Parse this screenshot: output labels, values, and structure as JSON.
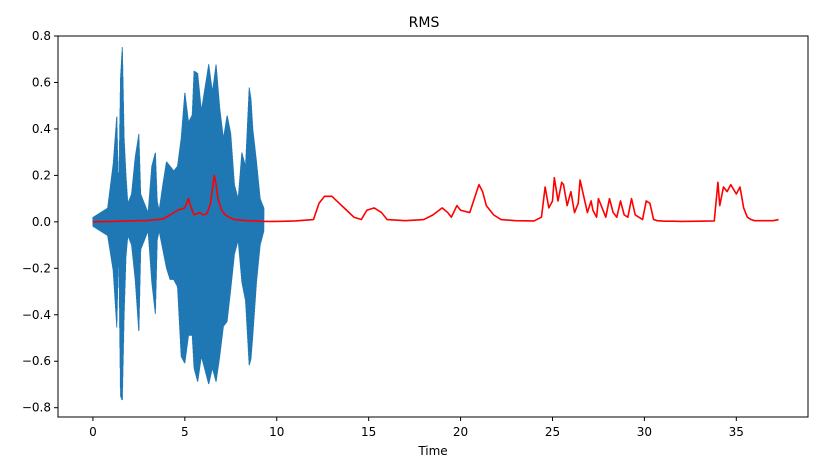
{
  "chart_data": {
    "type": "line",
    "title": "RMS",
    "xlabel": "Time",
    "ylabel": "",
    "xlim": [
      -1.9,
      38.9
    ],
    "ylim": [
      -0.84,
      0.8
    ],
    "x_ticks": [
      0,
      5,
      10,
      15,
      20,
      25,
      30,
      35
    ],
    "y_ticks": [
      -0.8,
      -0.6,
      -0.4,
      -0.2,
      0.0,
      0.2,
      0.4,
      0.6,
      0.8
    ],
    "x_tick_labels": [
      "0",
      "5",
      "10",
      "15",
      "20",
      "25",
      "30",
      "35"
    ],
    "y_tick_labels": [
      "−0.8",
      "−0.6",
      "−0.4",
      "−0.2",
      "0.0",
      "0.2",
      "0.4",
      "0.6",
      "0.8"
    ],
    "grid": false,
    "colors": {
      "waveform": "#1f77b4",
      "rms": "#ff0000"
    },
    "series": [
      {
        "style": "waveform",
        "x": [
          0.0,
          0.8,
          1.1,
          1.3,
          1.4,
          1.5,
          1.6,
          1.7,
          1.8,
          1.9,
          2.1,
          2.3,
          2.5,
          2.6,
          2.8,
          3.0,
          3.2,
          3.4,
          3.5,
          3.6,
          3.8,
          4.0,
          4.2,
          4.4,
          4.6,
          4.8,
          5.0,
          5.2,
          5.4,
          5.5,
          5.7,
          5.9,
          6.1,
          6.3,
          6.5,
          6.7,
          6.9,
          7.1,
          7.3,
          7.5,
          7.7,
          7.9,
          8.1,
          8.3,
          8.5,
          8.6,
          8.7,
          8.9,
          9.1,
          9.3
        ],
        "top": [
          0.02,
          0.06,
          0.25,
          0.46,
          0.1,
          0.62,
          0.76,
          0.36,
          0.2,
          0.08,
          0.12,
          0.28,
          0.38,
          0.12,
          0.08,
          0.04,
          0.24,
          0.3,
          0.09,
          0.05,
          0.16,
          0.26,
          0.24,
          0.22,
          0.24,
          0.36,
          0.56,
          0.43,
          0.46,
          0.65,
          0.64,
          0.48,
          0.58,
          0.68,
          0.56,
          0.68,
          0.49,
          0.36,
          0.46,
          0.38,
          0.16,
          0.1,
          0.3,
          0.24,
          0.58,
          0.53,
          0.4,
          0.26,
          0.1,
          0.06
        ],
        "bottom": [
          -0.02,
          -0.06,
          -0.21,
          -0.46,
          -0.1,
          -0.75,
          -0.77,
          -0.4,
          -0.15,
          -0.06,
          -0.1,
          -0.25,
          -0.48,
          -0.12,
          -0.08,
          -0.04,
          -0.26,
          -0.4,
          -0.08,
          -0.04,
          -0.12,
          -0.2,
          -0.25,
          -0.25,
          -0.28,
          -0.58,
          -0.61,
          -0.49,
          -0.49,
          -0.63,
          -0.69,
          -0.58,
          -0.64,
          -0.7,
          -0.63,
          -0.69,
          -0.58,
          -0.45,
          -0.43,
          -0.29,
          -0.14,
          -0.08,
          -0.26,
          -0.34,
          -0.62,
          -0.59,
          -0.49,
          -0.26,
          -0.1,
          -0.04
        ]
      },
      {
        "style": "rms",
        "x": [
          0.0,
          1.0,
          2.0,
          3.0,
          3.8,
          4.2,
          4.6,
          5.0,
          5.2,
          5.3,
          5.5,
          5.8,
          6.0,
          6.2,
          6.4,
          6.6,
          6.7,
          6.8,
          7.0,
          7.2,
          7.4,
          7.7,
          8.2,
          8.8,
          9.3,
          10.0,
          11.0,
          12.0,
          12.3,
          12.6,
          13.0,
          13.4,
          13.8,
          14.2,
          14.6,
          14.9,
          15.3,
          15.7,
          16.0,
          17.0,
          18.0,
          18.5,
          19.0,
          19.3,
          19.5,
          19.8,
          20.0,
          20.5,
          21.0,
          21.2,
          21.4,
          21.8,
          22.2,
          23.0,
          24.0,
          24.4,
          24.6,
          24.8,
          25.0,
          25.1,
          25.3,
          25.5,
          25.6,
          25.8,
          26.0,
          26.2,
          26.4,
          26.5,
          26.7,
          26.9,
          27.1,
          27.2,
          27.4,
          27.5,
          27.7,
          27.9,
          28.1,
          28.3,
          28.5,
          28.7,
          28.9,
          29.1,
          29.3,
          29.5,
          29.7,
          29.9,
          30.1,
          30.3,
          30.5,
          30.7,
          30.9,
          31.1,
          31.3,
          31.6,
          32.0,
          33.0,
          33.8,
          34.0,
          34.1,
          34.3,
          34.5,
          34.7,
          35.0,
          35.2,
          35.4,
          35.6,
          35.8,
          36.0,
          36.5,
          37.0,
          37.3
        ],
        "y": [
          0.0,
          0.002,
          0.004,
          0.006,
          0.012,
          0.03,
          0.05,
          0.06,
          0.1,
          0.07,
          0.03,
          0.04,
          0.03,
          0.035,
          0.08,
          0.2,
          0.16,
          0.1,
          0.05,
          0.03,
          0.02,
          0.01,
          0.006,
          0.004,
          0.002,
          0.002,
          0.004,
          0.01,
          0.08,
          0.11,
          0.11,
          0.08,
          0.05,
          0.02,
          0.01,
          0.05,
          0.06,
          0.04,
          0.01,
          0.005,
          0.01,
          0.03,
          0.06,
          0.04,
          0.02,
          0.07,
          0.05,
          0.04,
          0.16,
          0.13,
          0.07,
          0.03,
          0.01,
          0.005,
          0.004,
          0.02,
          0.15,
          0.06,
          0.09,
          0.19,
          0.09,
          0.17,
          0.16,
          0.07,
          0.13,
          0.04,
          0.08,
          0.18,
          0.11,
          0.04,
          0.09,
          0.05,
          0.02,
          0.1,
          0.06,
          0.02,
          0.1,
          0.04,
          0.02,
          0.09,
          0.03,
          0.02,
          0.1,
          0.03,
          0.02,
          0.01,
          0.09,
          0.08,
          0.01,
          0.005,
          0.004,
          0.003,
          0.003,
          0.003,
          0.002,
          0.003,
          0.004,
          0.17,
          0.07,
          0.15,
          0.13,
          0.16,
          0.12,
          0.15,
          0.06,
          0.02,
          0.01,
          0.005,
          0.005,
          0.005,
          0.01
        ]
      }
    ]
  }
}
